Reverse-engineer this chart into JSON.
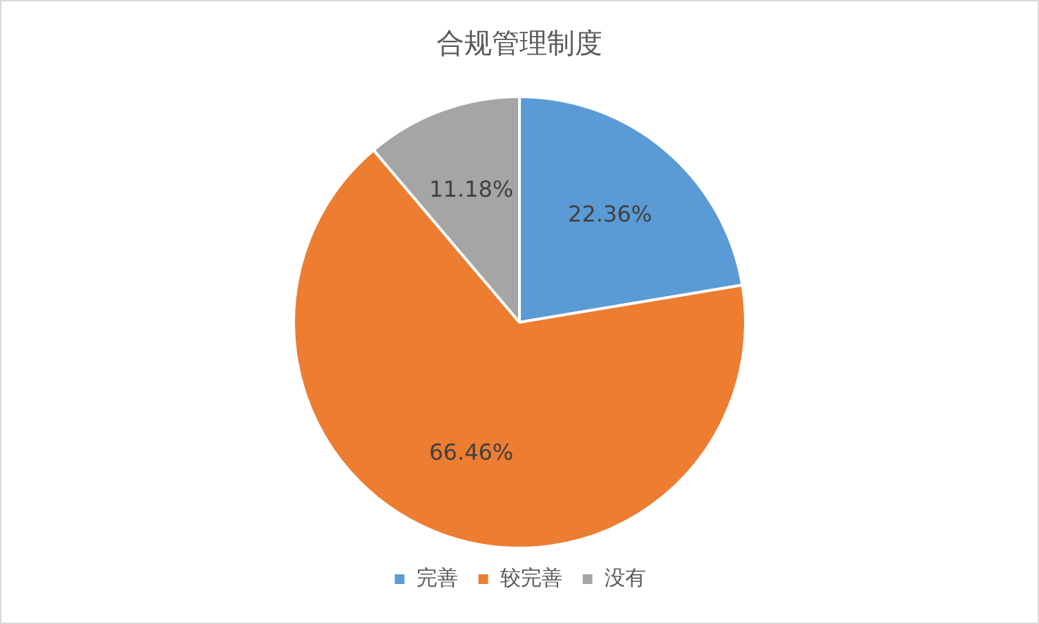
{
  "chart_data": {
    "type": "pie",
    "title": "合规管理制度",
    "categories": [
      "完善",
      "较完善",
      "没有"
    ],
    "values": [
      22.36,
      66.46,
      11.18
    ],
    "value_labels": [
      "22.36%",
      "66.46%",
      "11.18%"
    ],
    "colors": [
      "#5b9bd5",
      "#ed7d31",
      "#a5a5a5"
    ],
    "legend": "bottom"
  }
}
